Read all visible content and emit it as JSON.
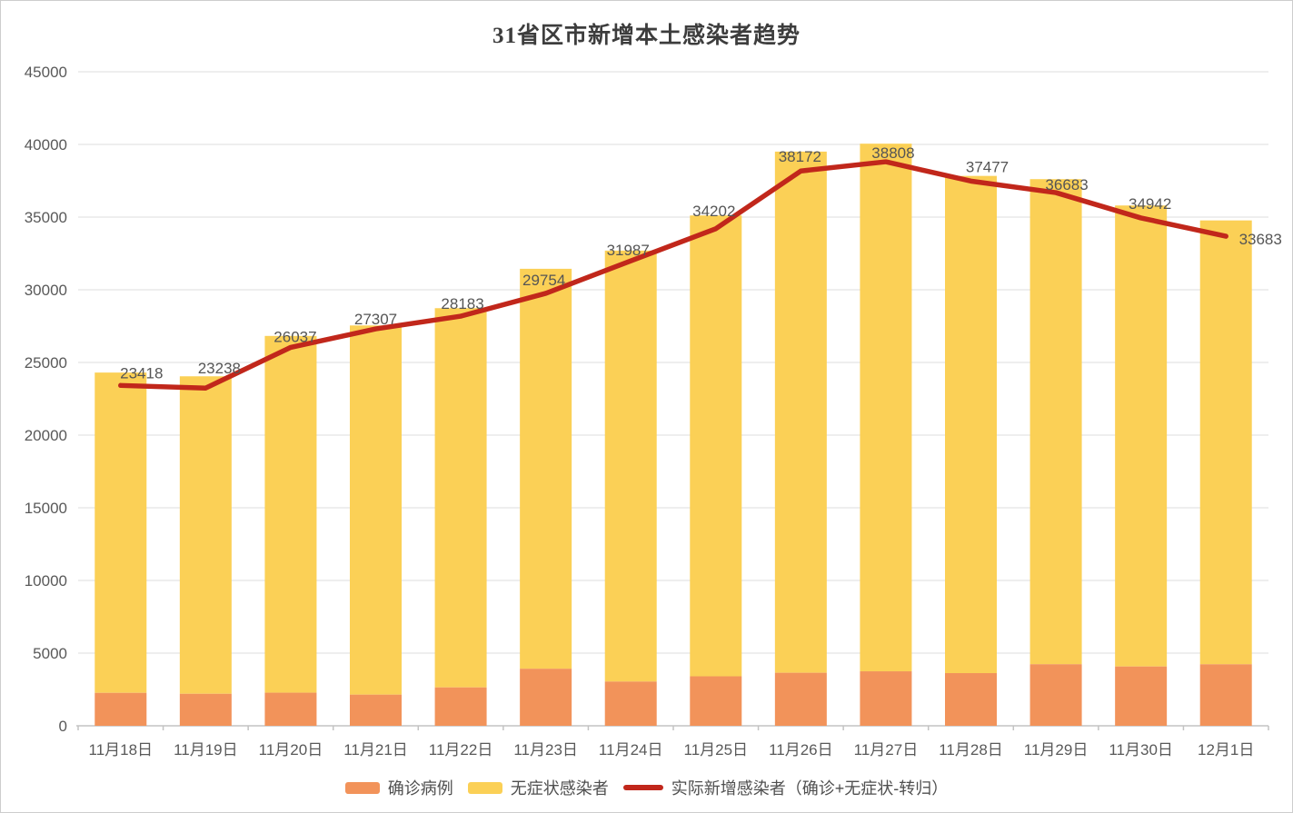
{
  "title": "31省区市新增本土感染者趋势",
  "chart_data": {
    "type": "bar",
    "subtype": "stacked-bars-with-line-overlay",
    "title": "31省区市新增本土感染者趋势",
    "categories": [
      "11月18日",
      "11月19日",
      "11月20日",
      "11月21日",
      "11月22日",
      "11月23日",
      "11月24日",
      "11月25日",
      "11月26日",
      "11月27日",
      "11月28日",
      "11月29日",
      "11月30日",
      "12月1日"
    ],
    "series": [
      {
        "name": "确诊病例",
        "type": "bar",
        "stacked": true,
        "color": "#F2935A",
        "values": [
          2267,
          2204,
          2277,
          2145,
          2641,
          3927,
          3041,
          3405,
          3648,
          3748,
          3624,
          4236,
          4080,
          4233
        ]
      },
      {
        "name": "无症状感染者",
        "type": "bar",
        "stacked": true,
        "color": "#FBD056",
        "values": [
          22037,
          21843,
          24547,
          25400,
          26093,
          27517,
          29654,
          31709,
          35858,
          36304,
          34210,
          33376,
          31720,
          30539
        ]
      },
      {
        "name": "实际新增感染者（确诊+无症状-转归）",
        "type": "line",
        "color": "#C1271B",
        "data_labels": true,
        "values": [
          23418,
          23238,
          26037,
          27307,
          28183,
          29754,
          31987,
          34202,
          38172,
          38808,
          37477,
          36683,
          34942,
          33683
        ]
      }
    ],
    "ylim": [
      0,
      45000
    ],
    "y_ticks": [
      0,
      5000,
      10000,
      15000,
      20000,
      25000,
      30000,
      35000,
      40000,
      45000
    ],
    "grid": "horizontal",
    "legend_position": "bottom"
  },
  "colors": {
    "confirmed_bar": "#F2935A",
    "asymptomatic_bar": "#FBD056",
    "trend_line": "#C1271B",
    "grid_line": "#DCDCDC",
    "axis_line": "#C3C3C3",
    "axis_text": "#595959",
    "data_label_text": "#555555",
    "title_text": "#3d3d3d",
    "background": "#ffffff"
  },
  "legend": {
    "items": [
      "确诊病例",
      "无症状感染者",
      "实际新增感染者（确诊+无症状-转归）"
    ]
  }
}
